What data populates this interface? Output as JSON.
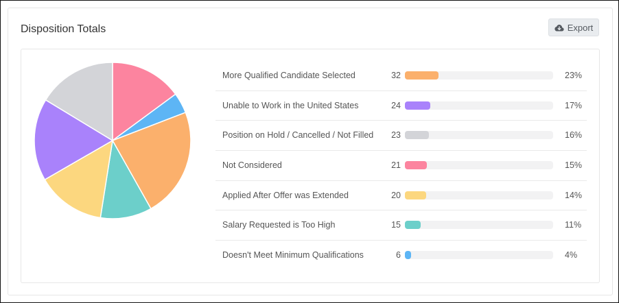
{
  "card": {
    "title": "Disposition Totals",
    "export_label": "Export"
  },
  "chart_data": {
    "type": "pie",
    "title": "Disposition Totals",
    "categories": [
      "More Qualified Candidate Selected",
      "Unable to Work in the United States",
      "Position on Hold / Cancelled / Not Filled",
      "Not Considered",
      "Applied After Offer was Extended",
      "Salary Requested is Too High",
      "Doesn't Meet Minimum Qualifications"
    ],
    "values": [
      32,
      24,
      23,
      21,
      20,
      15,
      6
    ],
    "percent_labels": [
      "23%",
      "17%",
      "16%",
      "15%",
      "14%",
      "11%",
      "4%"
    ],
    "colors": [
      "#fbb06c",
      "#a982fb",
      "#d3d4d8",
      "#fc849f",
      "#fcd77f",
      "#6ccfca",
      "#5db5f5"
    ],
    "pie_order": [
      3,
      6,
      0,
      5,
      4,
      1,
      2
    ],
    "bar_max": 140
  }
}
